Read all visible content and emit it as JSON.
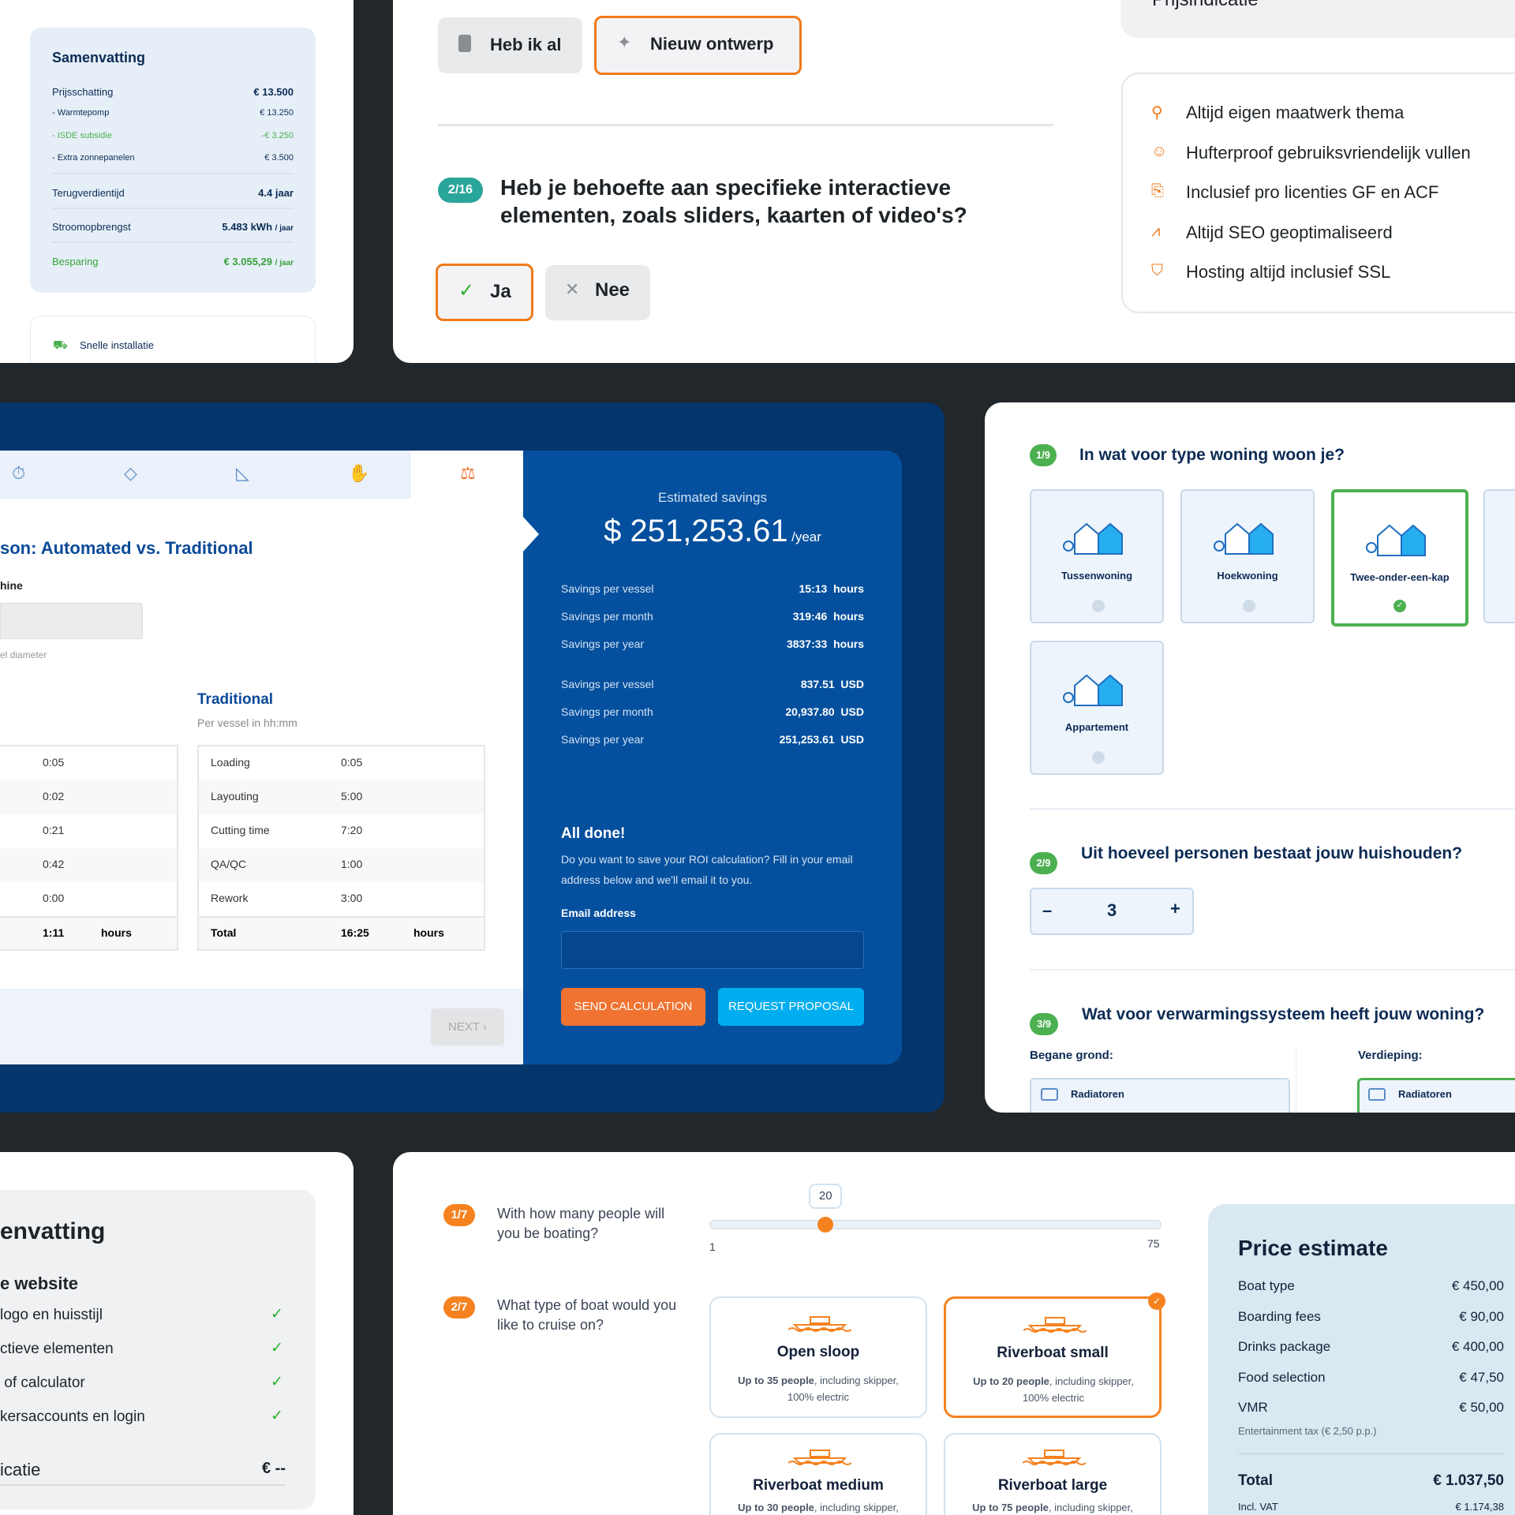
{
  "top_left": {
    "summary": {
      "title": "Samenvatting",
      "rows": [
        {
          "label": "Prijsschatting",
          "value": "€ 13.500"
        },
        {
          "label": "- Warmtepomp",
          "value": "€ 13.250"
        },
        {
          "label": "- ISDE subsidie",
          "value": "-€ 3.250"
        },
        {
          "label": "- Extra zonnepanelen",
          "value": "€ 3.500"
        },
        {
          "label": "Terugverdientijd",
          "value": "4.4 jaar"
        },
        {
          "label": "Stroomopbrengst",
          "value": "5.483 kWh",
          "unit": "/ jaar"
        },
        {
          "label": "Besparing",
          "value": "€ 3.055,29",
          "unit": "/ jaar"
        }
      ]
    },
    "feature": "Snelle installatie"
  },
  "top_mid": {
    "btn_have": "Heb ik al",
    "btn_new": "Nieuw ontwerp",
    "step": "2/16",
    "question": "Heb je behoefte aan specifieke interactieve elementen, zoals sliders, kaarten of video's?",
    "yes": "Ja",
    "no": "Nee",
    "price_label": "Prijsindicatie",
    "features": [
      {
        "icon": "wrench-icon",
        "text": "Altijd eigen maatwerk thema"
      },
      {
        "icon": "smiley-icon",
        "text": "Hufterproof gebruiksvriendelijk vullen"
      },
      {
        "icon": "license-icon",
        "text": "Inclusief pro licenties GF en ACF"
      },
      {
        "icon": "chart-icon",
        "text": "Altijd SEO geoptimaliseerd"
      },
      {
        "icon": "shield-icon",
        "text": "Hosting altijd inclusief SSL"
      }
    ]
  },
  "roi": {
    "title": "son: Automated vs. Traditional",
    "machine_label": "hine",
    "hint": "el diameter",
    "trad_title": "Traditional",
    "trad_sub": "Per vessel in hh:mm",
    "auto_values": [
      "0:05",
      "0:02",
      "0:21",
      "0:42",
      "0:00"
    ],
    "auto_total": "1:11",
    "hours": "hours",
    "trad_rows": [
      {
        "l": "Loading",
        "v": "0:05"
      },
      {
        "l": "Layouting",
        "v": "5:00"
      },
      {
        "l": "Cutting time",
        "v": "7:20"
      },
      {
        "l": "QA/QC",
        "v": "1:00"
      },
      {
        "l": "Rework",
        "v": "3:00"
      }
    ],
    "total_label": "Total",
    "trad_total": "16:25",
    "next": "NEXT ›",
    "est_label": "Estimated savings",
    "est_amount": "$ 251,253.61",
    "est_unit": "/year",
    "savings": [
      {
        "l": "Savings per vessel",
        "v": "15:13  hours"
      },
      {
        "l": "Savings per month",
        "v": "319:46  hours"
      },
      {
        "l": "Savings per year",
        "v": "3837:33  hours"
      },
      {
        "l": "Savings per vessel",
        "v": "837.51  USD"
      },
      {
        "l": "Savings per month",
        "v": "20,937.80  USD"
      },
      {
        "l": "Savings per year",
        "v": "251,253.61  USD"
      }
    ],
    "done_title": "All done!",
    "done_text": "Do you want to save your ROI calculation? Fill in your email address below and we'll email it to you.",
    "email_label": "Email address",
    "email_value": "",
    "send": "SEND CALCULATION",
    "request": "REQUEST PROPOSAL"
  },
  "woning": {
    "q1_step": "1/9",
    "q1": "In wat voor type woning woon je?",
    "types": [
      {
        "label": "Tussenwoning",
        "selected": false
      },
      {
        "label": "Hoekwoning",
        "selected": false
      },
      {
        "label": "Twee-onder-een-kap",
        "selected": true
      },
      {
        "label": "Appartement",
        "selected": false
      }
    ],
    "q2_step": "2/9",
    "q2": "Uit hoeveel personen bestaat jouw huishouden?",
    "minus": "–",
    "count": "3",
    "plus": "+",
    "q3_step": "3/9",
    "q3": "Wat voor verwarmingssysteem heeft jouw woning?",
    "ground": "Begane grond:",
    "floor": "Verdieping:",
    "ground_opt": "Radiatoren",
    "floor_opt": "Radiatoren"
  },
  "web_summary": {
    "title": "envatting",
    "section": "e website",
    "items": [
      "logo en huisstijl",
      "ctieve elementen",
      " of calculator",
      "kersaccounts en login"
    ],
    "price_label": "icatie",
    "price": "€ --"
  },
  "boat": {
    "q1_step": "1/7",
    "q1": "With how many people will you be boating?",
    "slider_value": "20",
    "slider_min": "1",
    "slider_max": "75",
    "slider_fraction": 0.257,
    "q2_step": "2/7",
    "q2": "What type of boat would you like to cruise on?",
    "boats": [
      {
        "name": "Open sloop",
        "bold": "Up to 35 people",
        "rest": ", including skipper, 100% electric",
        "selected": false
      },
      {
        "name": "Riverboat small",
        "bold": "Up to 20 people",
        "rest": ", including skipper, 100% electric",
        "selected": true
      },
      {
        "name": "Riverboat medium",
        "bold": "Up to 30 people",
        "rest": ", including skipper,",
        "selected": false
      },
      {
        "name": "Riverboat large",
        "bold": "Up to 75 people",
        "rest": ", including skipper,",
        "selected": false
      }
    ],
    "price_title": "Price estimate",
    "prices": [
      {
        "l": "Boat type",
        "v": "€ 450,00"
      },
      {
        "l": "Boarding fees",
        "v": "€ 90,00"
      },
      {
        "l": "Drinks package",
        "v": "€ 400,00"
      },
      {
        "l": "Food selection",
        "v": "€ 47,50"
      },
      {
        "l": "VMR",
        "v": "€ 50,00"
      }
    ],
    "tax_note": "Entertainment tax (€ 2,50 p.p.)",
    "total_label": "Total",
    "total": "€ 1.037,50",
    "vat_label": "Incl. VAT",
    "vat": "€ 1.174,38"
  },
  "colors": {
    "orange": "#f07a1a",
    "green": "#4cb050",
    "navy": "#0d2b55",
    "roi_blue": "#05509e",
    "bg": "#21272b"
  }
}
